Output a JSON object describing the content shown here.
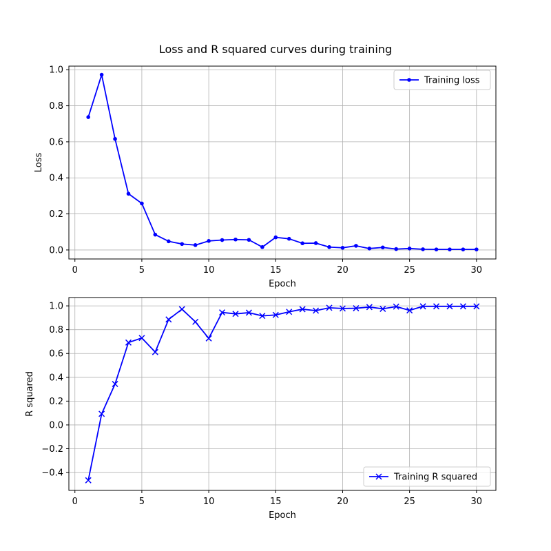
{
  "figure_title": "Loss and R squared curves during training",
  "chart_data": [
    {
      "type": "line",
      "xlabel": "Epoch",
      "ylabel": "Loss",
      "xlim": [
        -0.45,
        31.45
      ],
      "ylim": [
        -0.05,
        1.02
      ],
      "xticks": [
        0,
        5,
        10,
        15,
        20,
        25,
        30
      ],
      "yticks": [
        0.0,
        0.2,
        0.4,
        0.6,
        0.8,
        1.0
      ],
      "ytick_labels": [
        "0.0",
        "0.2",
        "0.4",
        "0.6",
        "0.8",
        "1.0"
      ],
      "grid": true,
      "legend_position": "top-right",
      "marker": "dot",
      "color": "#0000ff",
      "series": [
        {
          "name": "Training loss",
          "x": [
            1,
            2,
            3,
            4,
            5,
            6,
            7,
            8,
            9,
            10,
            11,
            12,
            13,
            14,
            15,
            16,
            17,
            18,
            19,
            20,
            21,
            22,
            23,
            24,
            25,
            26,
            27,
            28,
            29,
            30
          ],
          "y": [
            0.737,
            0.972,
            0.616,
            0.312,
            0.258,
            0.085,
            0.048,
            0.033,
            0.027,
            0.05,
            0.055,
            0.058,
            0.056,
            0.016,
            0.07,
            0.062,
            0.037,
            0.038,
            0.016,
            0.012,
            0.023,
            0.008,
            0.014,
            0.005,
            0.008,
            0.004,
            0.003,
            0.003,
            0.003,
            0.003
          ]
        }
      ]
    },
    {
      "type": "line",
      "xlabel": "Epoch",
      "ylabel": "R squared",
      "xlim": [
        -0.45,
        31.45
      ],
      "ylim": [
        -0.55,
        1.07
      ],
      "xticks": [
        0,
        5,
        10,
        15,
        20,
        25,
        30
      ],
      "yticks": [
        -0.4,
        -0.2,
        0.0,
        0.2,
        0.4,
        0.6,
        0.8,
        1.0
      ],
      "ytick_labels": [
        "−0.4",
        "−0.2",
        "0.0",
        "0.2",
        "0.4",
        "0.6",
        "0.8",
        "1.0"
      ],
      "grid": true,
      "legend_position": "bottom-right",
      "marker": "x",
      "color": "#0000ff",
      "series": [
        {
          "name": "Training R squared",
          "x": [
            1,
            2,
            3,
            4,
            5,
            6,
            7,
            8,
            9,
            10,
            11,
            12,
            13,
            14,
            15,
            16,
            17,
            18,
            19,
            20,
            21,
            22,
            23,
            24,
            25,
            26,
            27,
            28,
            29,
            30
          ],
          "y": [
            -0.465,
            0.093,
            0.344,
            0.692,
            0.73,
            0.612,
            0.886,
            0.972,
            0.866,
            0.727,
            0.945,
            0.933,
            0.943,
            0.916,
            0.924,
            0.95,
            0.972,
            0.96,
            0.984,
            0.978,
            0.98,
            0.99,
            0.975,
            0.994,
            0.962,
            0.996,
            0.996,
            0.996,
            0.996,
            0.996
          ]
        }
      ]
    }
  ]
}
